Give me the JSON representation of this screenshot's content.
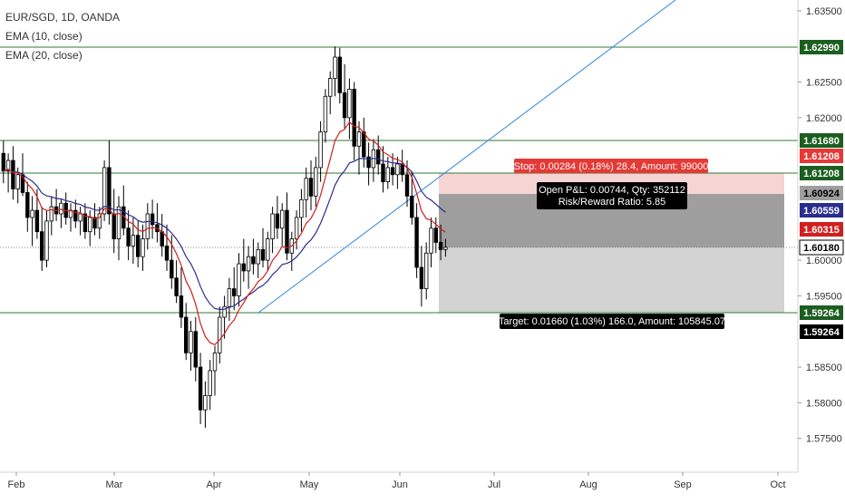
{
  "legend": {
    "symbol": "EUR/SGD, 1D, OANDA",
    "ema10": "EMA (10, close)",
    "ema20": "EMA (20, close)"
  },
  "colors": {
    "up": "#ffffff",
    "down": "#000000",
    "wick": "#000000",
    "ema10": "#d11f1f",
    "ema20": "#2b2e8f",
    "trendline": "#2e86de",
    "hline": "#2e7d32",
    "stop_zone": "#f7d4d4",
    "target_zone": "#d3d3d3",
    "pnl_zone": "#9e9e9e",
    "stop_label": "#e53935",
    "target_label": "#000000"
  },
  "price_scale": {
    "ticks": [
      "1.63500",
      "1.62500",
      "1.62000",
      "1.60000",
      "1.59500",
      "1.58500",
      "1.58000",
      "1.57500"
    ],
    "badges": [
      {
        "text": "1.62990",
        "bg": "#1b5e20",
        "fg": "#ffffff"
      },
      {
        "text": "1.61680",
        "bg": "#1b5e20",
        "fg": "#ffffff"
      },
      {
        "text": "1.61208",
        "bg": "#e53935",
        "fg": "#ffffff"
      },
      {
        "text": "1.61208",
        "bg": "#1b5e20",
        "fg": "#ffffff"
      },
      {
        "text": "1.60924",
        "bg": "#9e9e9e",
        "fg": "#000000"
      },
      {
        "text": "1.60559",
        "bg": "#2b2e8f",
        "fg": "#ffffff"
      },
      {
        "text": "1.60315",
        "bg": "#d11f1f",
        "fg": "#ffffff"
      },
      {
        "text": "1.60180",
        "bg": "#ffffff",
        "fg": "#000000"
      },
      {
        "text": "1.59264",
        "bg": "#1b5e20",
        "fg": "#ffffff"
      },
      {
        "text": "1.59264",
        "bg": "#000000",
        "fg": "#ffffff"
      }
    ]
  },
  "time_axis": [
    "Feb",
    "Mar",
    "Apr",
    "May",
    "Jun",
    "Jul",
    "Aug",
    "Sep",
    "Oct"
  ],
  "position_labels": {
    "stop": "Stop: 0.00284 (0.18%) 28.4, Amount: 99000",
    "pnl_line1": "Open P&L: 0.00744, Qty: 352112",
    "pnl_line2": "Risk/Reward Ratio: 5.85",
    "target": "Target: 0.01660 (1.03%) 166.0, Amount: 105845.07"
  },
  "chart_data": {
    "type": "candlestick",
    "title": "EUR/SGD, 1D, OANDA",
    "ylim": [
      1.5725,
      1.6375
    ],
    "x_ticks": [
      "Feb",
      "Mar",
      "Apr",
      "May",
      "Jun",
      "Jul",
      "Aug",
      "Sep",
      "Oct"
    ],
    "horizontal_levels": [
      1.6299,
      1.6168,
      1.61208,
      1.59264
    ],
    "position": {
      "entry": 1.6018,
      "stop": 1.61208,
      "target": 1.59264,
      "current": 1.60924
    },
    "indicators": [
      {
        "name": "EMA (10, close)",
        "last": 1.60315
      },
      {
        "name": "EMA (20, close)",
        "last": 1.60559
      }
    ],
    "ohlc": [
      {
        "o": 1.615,
        "h": 1.6168,
        "l": 1.6108,
        "c": 1.6125
      },
      {
        "o": 1.6125,
        "h": 1.615,
        "l": 1.6095,
        "c": 1.614
      },
      {
        "o": 1.614,
        "h": 1.616,
        "l": 1.6085,
        "c": 1.61
      },
      {
        "o": 1.61,
        "h": 1.613,
        "l": 1.608,
        "c": 1.612
      },
      {
        "o": 1.612,
        "h": 1.615,
        "l": 1.609,
        "c": 1.6095
      },
      {
        "o": 1.6095,
        "h": 1.611,
        "l": 1.604,
        "c": 1.606
      },
      {
        "o": 1.606,
        "h": 1.609,
        "l": 1.602,
        "c": 1.607
      },
      {
        "o": 1.607,
        "h": 1.61,
        "l": 1.603,
        "c": 1.604
      },
      {
        "o": 1.604,
        "h": 1.6075,
        "l": 1.5985,
        "c": 1.6
      },
      {
        "o": 1.6,
        "h": 1.607,
        "l": 1.599,
        "c": 1.6055
      },
      {
        "o": 1.6055,
        "h": 1.609,
        "l": 1.6035,
        "c": 1.6075
      },
      {
        "o": 1.6075,
        "h": 1.61,
        "l": 1.6055,
        "c": 1.6065
      },
      {
        "o": 1.6065,
        "h": 1.6085,
        "l": 1.6045,
        "c": 1.608
      },
      {
        "o": 1.608,
        "h": 1.6095,
        "l": 1.605,
        "c": 1.606
      },
      {
        "o": 1.606,
        "h": 1.608,
        "l": 1.604,
        "c": 1.607
      },
      {
        "o": 1.607,
        "h": 1.6085,
        "l": 1.6045,
        "c": 1.6055
      },
      {
        "o": 1.6055,
        "h": 1.6075,
        "l": 1.6035,
        "c": 1.6065
      },
      {
        "o": 1.6065,
        "h": 1.608,
        "l": 1.603,
        "c": 1.604
      },
      {
        "o": 1.604,
        "h": 1.607,
        "l": 1.602,
        "c": 1.606
      },
      {
        "o": 1.606,
        "h": 1.608,
        "l": 1.6035,
        "c": 1.6045
      },
      {
        "o": 1.6045,
        "h": 1.6075,
        "l": 1.603,
        "c": 1.6065
      },
      {
        "o": 1.6065,
        "h": 1.614,
        "l": 1.6055,
        "c": 1.613
      },
      {
        "o": 1.613,
        "h": 1.6168,
        "l": 1.605,
        "c": 1.6065
      },
      {
        "o": 1.6065,
        "h": 1.61,
        "l": 1.601,
        "c": 1.603
      },
      {
        "o": 1.603,
        "h": 1.609,
        "l": 1.6,
        "c": 1.6075
      },
      {
        "o": 1.6075,
        "h": 1.6105,
        "l": 1.6035,
        "c": 1.6045
      },
      {
        "o": 1.6045,
        "h": 1.607,
        "l": 1.6,
        "c": 1.602
      },
      {
        "o": 1.602,
        "h": 1.606,
        "l": 1.5995,
        "c": 1.6035
      },
      {
        "o": 1.6035,
        "h": 1.6055,
        "l": 1.599,
        "c": 1.6005
      },
      {
        "o": 1.6005,
        "h": 1.605,
        "l": 1.5985,
        "c": 1.603
      },
      {
        "o": 1.603,
        "h": 1.608,
        "l": 1.6015,
        "c": 1.6065
      },
      {
        "o": 1.6065,
        "h": 1.6085,
        "l": 1.603,
        "c": 1.605
      },
      {
        "o": 1.605,
        "h": 1.608,
        "l": 1.6025,
        "c": 1.604
      },
      {
        "o": 1.604,
        "h": 1.6065,
        "l": 1.6005,
        "c": 1.602
      },
      {
        "o": 1.602,
        "h": 1.605,
        "l": 1.5985,
        "c": 1.6
      },
      {
        "o": 1.6,
        "h": 1.6035,
        "l": 1.596,
        "c": 1.5975
      },
      {
        "o": 1.5975,
        "h": 1.6,
        "l": 1.594,
        "c": 1.595
      },
      {
        "o": 1.595,
        "h": 1.599,
        "l": 1.5905,
        "c": 1.592
      },
      {
        "o": 1.592,
        "h": 1.594,
        "l": 1.586,
        "c": 1.587
      },
      {
        "o": 1.587,
        "h": 1.5915,
        "l": 1.5845,
        "c": 1.59
      },
      {
        "o": 1.59,
        "h": 1.592,
        "l": 1.583,
        "c": 1.585
      },
      {
        "o": 1.585,
        "h": 1.587,
        "l": 1.577,
        "c": 1.579
      },
      {
        "o": 1.579,
        "h": 1.583,
        "l": 1.5765,
        "c": 1.581
      },
      {
        "o": 1.581,
        "h": 1.586,
        "l": 1.579,
        "c": 1.5845
      },
      {
        "o": 1.5845,
        "h": 1.588,
        "l": 1.581,
        "c": 1.587
      },
      {
        "o": 1.587,
        "h": 1.5935,
        "l": 1.5855,
        "c": 1.592
      },
      {
        "o": 1.592,
        "h": 1.595,
        "l": 1.589,
        "c": 1.5935
      },
      {
        "o": 1.5935,
        "h": 1.5975,
        "l": 1.5915,
        "c": 1.596
      },
      {
        "o": 1.596,
        "h": 1.599,
        "l": 1.593,
        "c": 1.595
      },
      {
        "o": 1.595,
        "h": 1.601,
        "l": 1.5935,
        "c": 1.5995
      },
      {
        "o": 1.5995,
        "h": 1.603,
        "l": 1.597,
        "c": 1.5985
      },
      {
        "o": 1.5985,
        "h": 1.602,
        "l": 1.596,
        "c": 1.6005
      },
      {
        "o": 1.6005,
        "h": 1.603,
        "l": 1.598,
        "c": 1.5995
      },
      {
        "o": 1.5995,
        "h": 1.6025,
        "l": 1.5975,
        "c": 1.6015
      },
      {
        "o": 1.6015,
        "h": 1.6045,
        "l": 1.599,
        "c": 1.6
      },
      {
        "o": 1.6,
        "h": 1.604,
        "l": 1.5985,
        "c": 1.603
      },
      {
        "o": 1.603,
        "h": 1.6075,
        "l": 1.601,
        "c": 1.6065
      },
      {
        "o": 1.6065,
        "h": 1.609,
        "l": 1.603,
        "c": 1.6045
      },
      {
        "o": 1.6045,
        "h": 1.608,
        "l": 1.602,
        "c": 1.607
      },
      {
        "o": 1.607,
        "h": 1.6095,
        "l": 1.6,
        "c": 1.601
      },
      {
        "o": 1.601,
        "h": 1.604,
        "l": 1.5985,
        "c": 1.603
      },
      {
        "o": 1.603,
        "h": 1.607,
        "l": 1.6015,
        "c": 1.606
      },
      {
        "o": 1.606,
        "h": 1.61,
        "l": 1.604,
        "c": 1.6085
      },
      {
        "o": 1.6085,
        "h": 1.613,
        "l": 1.606,
        "c": 1.6115
      },
      {
        "o": 1.6115,
        "h": 1.614,
        "l": 1.607,
        "c": 1.609
      },
      {
        "o": 1.609,
        "h": 1.6145,
        "l": 1.6075,
        "c": 1.613
      },
      {
        "o": 1.613,
        "h": 1.6195,
        "l": 1.611,
        "c": 1.618
      },
      {
        "o": 1.618,
        "h": 1.624,
        "l": 1.6165,
        "c": 1.623
      },
      {
        "o": 1.623,
        "h": 1.6265,
        "l": 1.6205,
        "c": 1.6255
      },
      {
        "o": 1.6255,
        "h": 1.63,
        "l": 1.623,
        "c": 1.6285
      },
      {
        "o": 1.6285,
        "h": 1.6298,
        "l": 1.622,
        "c": 1.6235
      },
      {
        "o": 1.6235,
        "h": 1.6275,
        "l": 1.6185,
        "c": 1.62
      },
      {
        "o": 1.62,
        "h": 1.6255,
        "l": 1.617,
        "c": 1.624
      },
      {
        "o": 1.624,
        "h": 1.625,
        "l": 1.614,
        "c": 1.616
      },
      {
        "o": 1.616,
        "h": 1.6195,
        "l": 1.612,
        "c": 1.618
      },
      {
        "o": 1.618,
        "h": 1.62,
        "l": 1.613,
        "c": 1.6145
      },
      {
        "o": 1.6145,
        "h": 1.6165,
        "l": 1.6105,
        "c": 1.613
      },
      {
        "o": 1.613,
        "h": 1.617,
        "l": 1.611,
        "c": 1.6155
      },
      {
        "o": 1.6155,
        "h": 1.6175,
        "l": 1.612,
        "c": 1.6135
      },
      {
        "o": 1.6135,
        "h": 1.616,
        "l": 1.6095,
        "c": 1.611
      },
      {
        "o": 1.611,
        "h": 1.6145,
        "l": 1.61,
        "c": 1.613
      },
      {
        "o": 1.613,
        "h": 1.615,
        "l": 1.6105,
        "c": 1.612
      },
      {
        "o": 1.612,
        "h": 1.6145,
        "l": 1.61,
        "c": 1.6135
      },
      {
        "o": 1.6135,
        "h": 1.6155,
        "l": 1.611,
        "c": 1.612
      },
      {
        "o": 1.612,
        "h": 1.614,
        "l": 1.6075,
        "c": 1.609
      },
      {
        "o": 1.609,
        "h": 1.6125,
        "l": 1.605,
        "c": 1.606
      },
      {
        "o": 1.606,
        "h": 1.608,
        "l": 1.5975,
        "c": 1.599
      },
      {
        "o": 1.599,
        "h": 1.602,
        "l": 1.5935,
        "c": 1.596
      },
      {
        "o": 1.596,
        "h": 1.6025,
        "l": 1.5945,
        "c": 1.601
      },
      {
        "o": 1.601,
        "h": 1.606,
        "l": 1.599,
        "c": 1.6045
      },
      {
        "o": 1.6045,
        "h": 1.606,
        "l": 1.601,
        "c": 1.6025
      },
      {
        "o": 1.6025,
        "h": 1.605,
        "l": 1.6,
        "c": 1.6015
      },
      {
        "o": 1.6015,
        "h": 1.603,
        "l": 1.6005,
        "c": 1.6018
      }
    ]
  }
}
